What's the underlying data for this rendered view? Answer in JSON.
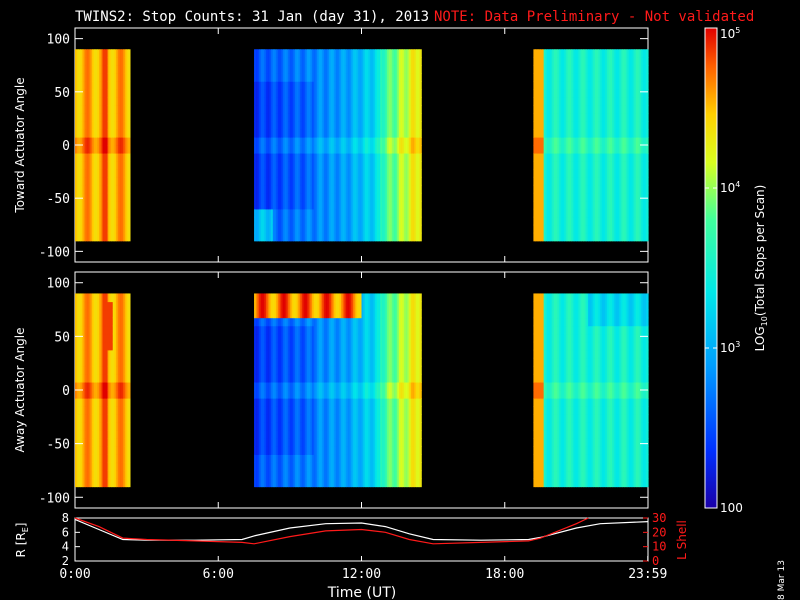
{
  "title": {
    "main": "TWINS2: Stop Counts: 31 Jan (day  31), 2013",
    "note": "NOTE: Data Preliminary - Not validated",
    "note_color": "#ff1a1a"
  },
  "stamp": "8 Mar 13",
  "colors": {
    "background": "#000000",
    "axes": "#ffffff",
    "lshell": "#ff1a1a",
    "radius": "#ffffff"
  },
  "chart_data": [
    {
      "type": "heatmap",
      "ylabel": "Toward Actuator Angle",
      "ylim": [
        -110,
        110
      ],
      "yticks": [
        100,
        50,
        0,
        -50,
        -100
      ],
      "x_unit": "hours UT",
      "xlim": [
        0,
        24
      ],
      "data_angle_range": [
        -90,
        90
      ],
      "blocks": [
        {
          "t_start": 0.0,
          "t_end": 2.3
        },
        {
          "t_start": 7.5,
          "t_end": 14.5
        },
        {
          "t_start": 19.2,
          "t_end": 24.0
        }
      ],
      "colorscale": "log10"
    },
    {
      "type": "heatmap",
      "ylabel": "Away Actuator Angle",
      "ylim": [
        -110,
        110
      ],
      "yticks": [
        100,
        50,
        0,
        -50,
        -100
      ],
      "x_unit": "hours UT",
      "xlim": [
        0,
        24
      ],
      "data_angle_range": [
        -90,
        90
      ],
      "blocks": [
        {
          "t_start": 0.0,
          "t_end": 2.3
        },
        {
          "t_start": 7.5,
          "t_end": 14.5
        },
        {
          "t_start": 19.2,
          "t_end": 24.0
        }
      ],
      "colorscale": "log10"
    },
    {
      "type": "line",
      "xlabel": "Time (UT)",
      "xlim": [
        0,
        24
      ],
      "xticks": [
        "0:00",
        "6:00",
        "12:00",
        "18:00",
        "23:59"
      ],
      "ylabel_left": "R [R",
      "ylabel_left_sub": "E",
      "ylabel_left_end": "]",
      "ylim_left": [
        2,
        8
      ],
      "yticks_left": [
        8,
        6,
        4,
        2
      ],
      "ylabel_right": "L Shell",
      "ylim_right": [
        0,
        30
      ],
      "yticks_right": [
        30,
        20,
        10,
        0
      ],
      "series": [
        {
          "axis": "left",
          "x": [
            0,
            1,
            2,
            3,
            5,
            7,
            7.5,
            9,
            10.5,
            12,
            13,
            14,
            15,
            17,
            19,
            19.5,
            21,
            22,
            23.99
          ],
          "y": [
            7.8,
            6.4,
            5.0,
            4.9,
            4.9,
            5.0,
            5.5,
            6.6,
            7.2,
            7.3,
            6.8,
            5.8,
            5.0,
            4.9,
            5.0,
            5.3,
            6.6,
            7.2,
            7.5
          ]
        },
        {
          "axis": "right",
          "x": [
            0,
            1,
            2,
            3,
            5,
            7,
            7.5,
            9,
            10.5,
            12,
            13,
            14,
            15,
            17,
            19,
            19.5,
            21,
            21.5
          ],
          "y": [
            30,
            24,
            16,
            15,
            14,
            13,
            12,
            17,
            21,
            22,
            20,
            15,
            12,
            13,
            14,
            16,
            26,
            30
          ]
        }
      ]
    }
  ],
  "colorbar": {
    "label": "LOG",
    "label_sub": "10",
    "label_rest": "(Total Stops per Scan)",
    "ticks": [
      {
        "value": 100,
        "text": "100"
      },
      {
        "value": 1000,
        "text": "10",
        "exp": "3"
      },
      {
        "value": 10000,
        "text": "10",
        "exp": "4"
      },
      {
        "value": 100000,
        "text": "10",
        "exp": "5"
      }
    ],
    "range": [
      100,
      100000
    ]
  }
}
